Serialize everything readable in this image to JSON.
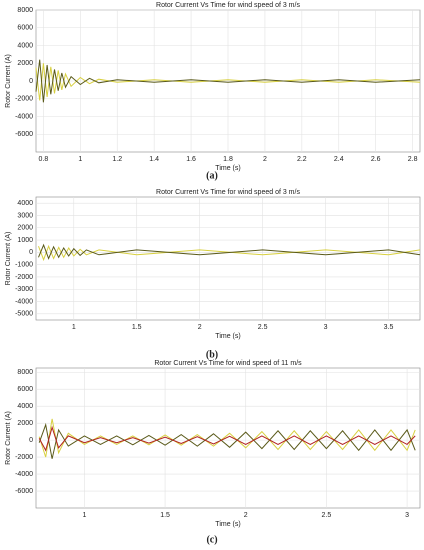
{
  "chart_data": [
    {
      "type": "line",
      "title": "Rotor Current Vs Time for wind speed of 3 m/s",
      "xlabel": "Time (s)",
      "ylabel": "Rotor Current (A)",
      "caption": "(a)",
      "x": [
        0.76,
        0.78,
        0.8,
        0.82,
        0.84,
        0.86,
        0.88,
        0.9,
        0.92,
        0.95,
        1.0,
        1.05,
        1.1,
        1.2,
        1.4,
        1.6,
        1.8,
        2.0,
        2.2,
        2.4,
        2.6,
        2.84
      ],
      "series": [
        {
          "color": "#d8d040",
          "values": [
            1500,
            -2200,
            2000,
            -1800,
            1600,
            -1400,
            1200,
            -1000,
            800,
            -600,
            400,
            -300,
            200,
            -150,
            150,
            -150,
            150,
            -150,
            150,
            -150,
            150,
            -150
          ]
        },
        {
          "color": "#5a5a1a",
          "values": [
            -1200,
            2400,
            -2400,
            1800,
            -1500,
            1300,
            -1100,
            900,
            -700,
            500,
            -400,
            300,
            -200,
            150,
            -150,
            150,
            -150,
            150,
            -150,
            150,
            -150,
            150
          ]
        }
      ],
      "xlim": [
        0.76,
        2.84
      ],
      "xticks": [
        0.8,
        1,
        1.2,
        1.4,
        1.6,
        1.8,
        2,
        2.2,
        2.4,
        2.6,
        2.8
      ],
      "ylim": [
        -8000,
        8000
      ],
      "yticks": [
        -6000,
        -4000,
        -2000,
        0,
        2000,
        4000,
        6000,
        8000
      ],
      "grid": true
    },
    {
      "type": "line",
      "title": "Rotor Current Vs Time for wind speed of 3 m/s",
      "xlabel": "Time (s)",
      "ylabel": "Rotor Current (A)",
      "caption": "(b)",
      "x": [
        0.72,
        0.76,
        0.8,
        0.84,
        0.88,
        0.92,
        0.96,
        1.0,
        1.05,
        1.1,
        1.2,
        1.5,
        2.0,
        2.5,
        3.0,
        3.5,
        3.75
      ],
      "series": [
        {
          "color": "#d8d040",
          "values": [
            500,
            -600,
            500,
            -500,
            400,
            -400,
            350,
            -300,
            250,
            -200,
            200,
            -200,
            200,
            -200,
            200,
            -200,
            200
          ]
        },
        {
          "color": "#5a5a1a",
          "values": [
            -400,
            600,
            -500,
            450,
            -400,
            350,
            -300,
            300,
            -250,
            200,
            -200,
            200,
            -200,
            200,
            -200,
            200,
            -200
          ]
        }
      ],
      "xlim": [
        0.7,
        3.75
      ],
      "xticks": [
        1,
        1.5,
        2,
        2.5,
        3,
        3.5
      ],
      "ylim": [
        -5500,
        4500
      ],
      "yticks": [
        -5000,
        -4000,
        -3000,
        -2000,
        -1000,
        0,
        1000,
        2000,
        3000,
        4000
      ],
      "grid": true
    },
    {
      "type": "line",
      "title": "Rotor Current Vs Time for wind speed of 11 m/s",
      "xlabel": "Time (s)",
      "ylabel": "Rotor Current (A)",
      "caption": "(c)",
      "x": [
        0.72,
        0.76,
        0.8,
        0.84,
        0.9,
        1.0,
        1.1,
        1.2,
        1.3,
        1.4,
        1.5,
        1.6,
        1.7,
        1.8,
        1.9,
        2.0,
        2.1,
        2.2,
        2.3,
        2.4,
        2.5,
        2.6,
        2.7,
        2.8,
        2.9,
        3.0,
        3.05
      ],
      "series": [
        {
          "color": "#d8d040",
          "values": [
            400,
            -2000,
            2500,
            -1500,
            800,
            -500,
            500,
            -500,
            500,
            -550,
            600,
            -600,
            650,
            -700,
            800,
            -900,
            1000,
            -1100,
            1100,
            -1100,
            1000,
            -1100,
            1200,
            -1200,
            1200,
            -1200,
            1200
          ]
        },
        {
          "color": "#5a5a1a",
          "values": [
            -300,
            1800,
            -2200,
            1200,
            -700,
            500,
            -500,
            500,
            -550,
            550,
            -600,
            650,
            -700,
            750,
            -850,
            950,
            -1000,
            1100,
            -1100,
            1100,
            -1000,
            1100,
            -1200,
            1200,
            -1200,
            1200,
            -1200
          ]
        },
        {
          "color": "#b02020",
          "values": [
            200,
            -1200,
            1500,
            -900,
            500,
            -300,
            300,
            -300,
            300,
            -350,
            350,
            -400,
            400,
            -450,
            450,
            -500,
            500,
            -500,
            500,
            -500,
            500,
            -500,
            500,
            -500,
            500,
            -500,
            500
          ]
        }
      ],
      "xlim": [
        0.7,
        3.08
      ],
      "xticks": [
        1,
        1.5,
        2,
        2.5,
        3
      ],
      "ylim": [
        -8000,
        8500
      ],
      "yticks": [
        -6000,
        -4000,
        -2000,
        0,
        2000,
        4000,
        6000,
        8000
      ],
      "grid": true
    }
  ]
}
